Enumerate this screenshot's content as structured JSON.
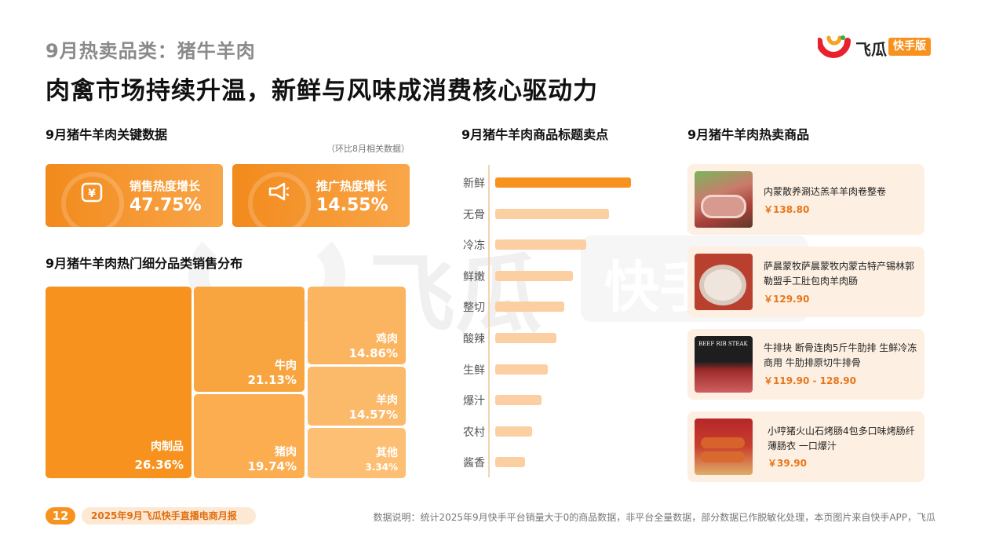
{
  "header": {
    "kicker": "9月热卖品类：猪牛羊肉",
    "headline": "肉禽市场持续升温，新鲜与风味成消费核心驱动力"
  },
  "logo": {
    "brand": "飞瓜",
    "tag": "快手版",
    "icon": "feigua-logo-icon"
  },
  "watermark": {
    "text": "飞瓜",
    "tag": "快手"
  },
  "key_data": {
    "title": "9月猪牛羊肉关键数据",
    "note": "（环比8月相关数据）",
    "cards": [
      {
        "label": "销售热度增长",
        "value": "47.75%",
        "icon": "money-bag-icon"
      },
      {
        "label": "推广热度增长",
        "value": "14.55%",
        "icon": "megaphone-icon"
      }
    ]
  },
  "treemap": {
    "title": "9月猪牛羊肉热门细分品类销售分布",
    "items": [
      {
        "name": "肉制品",
        "pct": "26.36%",
        "color": "#f7921e"
      },
      {
        "name": "牛肉",
        "pct": "21.13%",
        "color": "#f9a53f"
      },
      {
        "name": "猪肉",
        "pct": "19.74%",
        "color": "#fbad50"
      },
      {
        "name": "鸡肉",
        "pct": "14.86%",
        "color": "#fbb45f"
      },
      {
        "name": "羊肉",
        "pct": "14.57%",
        "color": "#fbb96a"
      },
      {
        "name": "其他",
        "pct": "3.34%",
        "color": "#fcbf74"
      }
    ]
  },
  "chart_data": {
    "type": "bar",
    "title": "9月猪牛羊肉商品标题卖点",
    "categories": [
      "新鲜",
      "无骨",
      "冷冻",
      "鲜嫩",
      "整切",
      "酸辣",
      "生鲜",
      "爆汁",
      "农村",
      "酱香"
    ],
    "values": [
      100,
      84,
      67,
      57,
      51,
      45,
      39,
      34,
      27,
      22
    ],
    "xlabel": "",
    "ylabel": "",
    "colors": {
      "top": "#f7921e",
      "rest": "#fbcfa2"
    }
  },
  "hot_products": {
    "title": "9月猪牛羊肉热卖商品",
    "items": [
      {
        "name": "内蒙散养涮达羔羊羊肉卷整卷",
        "price": "￥138.80",
        "thumb_badge": "",
        "thumb_icon": "lamb-roll-image"
      },
      {
        "name": "萨晨蒙牧萨晨蒙牧内蒙古特产锡林郭勒盟手工肚包肉羊肉肠",
        "price": "￥129.90",
        "thumb_badge": "",
        "thumb_icon": "lamb-sausage-image"
      },
      {
        "name": "牛排块  断骨连肉5斤牛肋排  生鲜冷冻 商用 牛肋排原切牛排骨",
        "price": "￥119.90 - 128.90",
        "thumb_badge": "BEEF RIB STEAK",
        "thumb_icon": "beef-rib-image"
      },
      {
        "name": "小哼猪火山石烤肠4包多口味烤肠纤薄肠衣 一口爆汁",
        "price": "￥39.90",
        "thumb_badge": "",
        "thumb_icon": "sausage-image"
      }
    ]
  },
  "footer": {
    "page": "12",
    "report": "2025年9月飞瓜快手直播电商月报",
    "note": "数据说明：统计2025年9月快手平台销量大于0的商品数据，非平台全量数据，部分数据已作脱敏化处理，本页图片来自快手APP，飞瓜"
  }
}
